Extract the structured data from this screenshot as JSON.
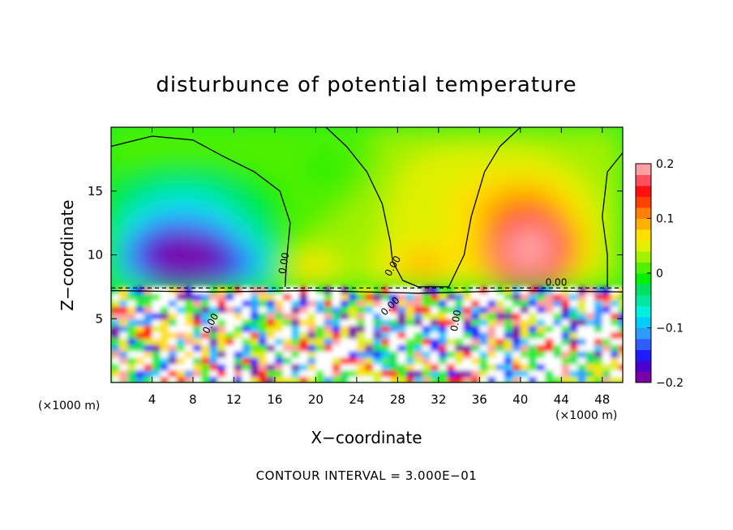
{
  "chart_data": {
    "type": "heatmap",
    "title": "disturbunce of potential temperature",
    "xlabel": "X−coordinate",
    "ylabel": "Z−coordinate",
    "x_unit": "(×1000 m)",
    "y_unit": "(×1000 m)",
    "xlim": [
      0,
      50
    ],
    "ylim": [
      0,
      20
    ],
    "x_ticks": [
      4,
      8,
      12,
      16,
      20,
      24,
      28,
      32,
      36,
      40,
      44,
      48
    ],
    "x_tick_labels": [
      "4",
      "8",
      "12",
      "16",
      "20",
      "24",
      "28",
      "32",
      "36",
      "40",
      "44",
      "48"
    ],
    "y_ticks": [
      5,
      10,
      15
    ],
    "y_tick_labels": [
      "5",
      "10",
      "15"
    ],
    "colorbar": {
      "min": -0.2,
      "max": 0.2,
      "ticks": [
        0.2,
        0.1,
        0,
        -0.1,
        -0.2
      ],
      "tick_labels": [
        "0.2",
        "0.1",
        "0",
        "−0.1",
        "−0.2"
      ],
      "colors": [
        "#7a00a8",
        "#4b00d0",
        "#1c1cff",
        "#2e5cff",
        "#2e9cff",
        "#00cdff",
        "#00f0e0",
        "#00e8a0",
        "#00e060",
        "#00f000",
        "#50f000",
        "#a0f000",
        "#e0f000",
        "#ffe000",
        "#ffb000",
        "#ff8000",
        "#ff4000",
        "#ff1010",
        "#ff5060",
        "#ffa0a0"
      ]
    },
    "contour_labels": [
      "0.00",
      "0.00",
      "0.00",
      "0.00",
      "0.00",
      "0.00"
    ],
    "contour_interval_text": "CONTOUR INTERVAL = 3.000E−01",
    "grid": false,
    "colorbar_position": "right"
  }
}
